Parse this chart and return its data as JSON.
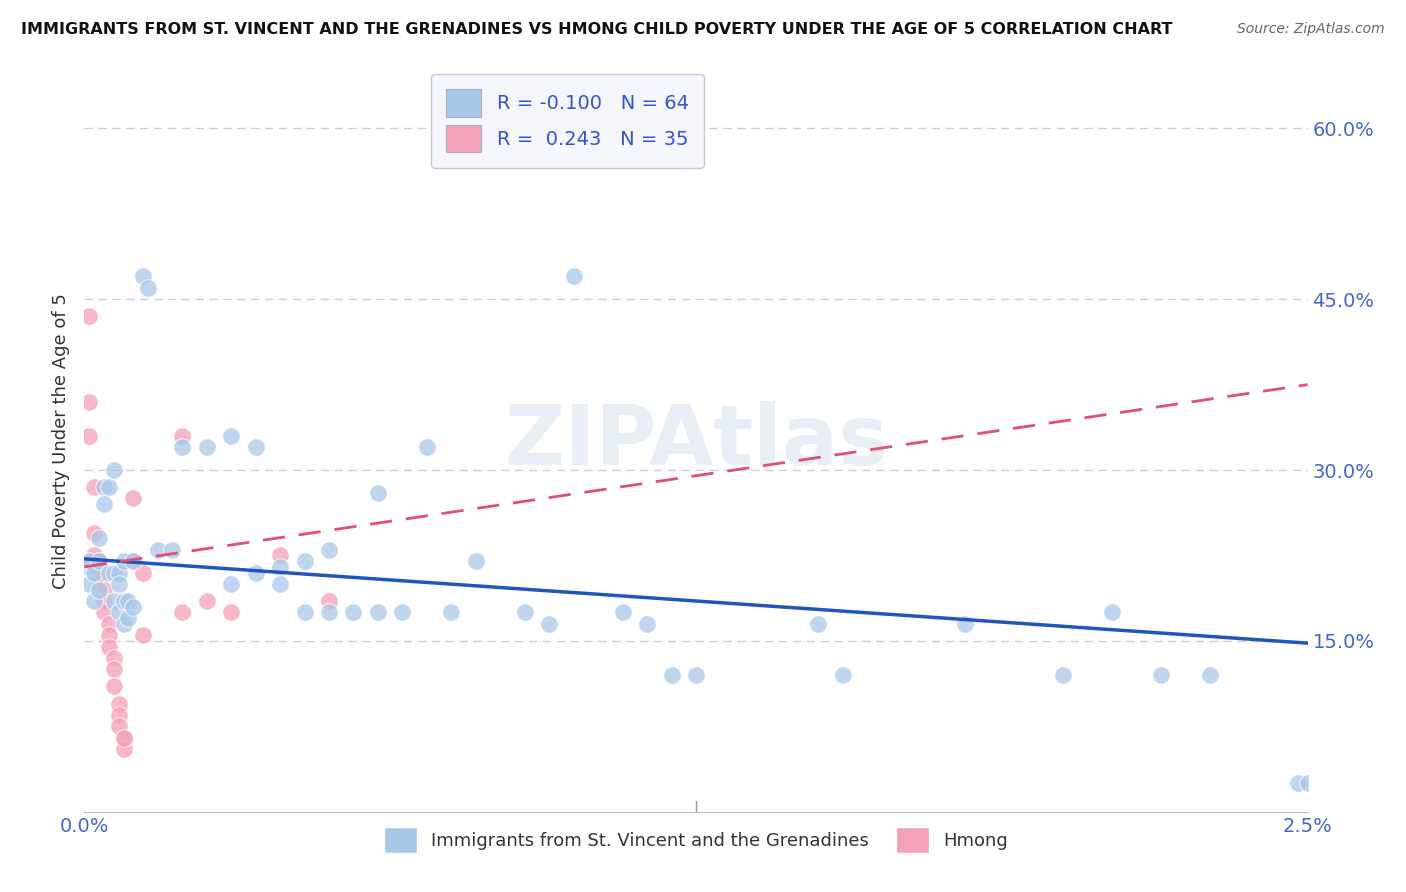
{
  "title": "IMMIGRANTS FROM ST. VINCENT AND THE GRENADINES VS HMONG CHILD POVERTY UNDER THE AGE OF 5 CORRELATION CHART",
  "source": "Source: ZipAtlas.com",
  "ylabel": "Child Poverty Under the Age of 5",
  "blue_R": -0.1,
  "blue_N": 64,
  "pink_R": 0.243,
  "pink_N": 35,
  "blue_color": "#a8c8e8",
  "pink_color": "#f4a0b8",
  "blue_line_color": "#2255bb",
  "pink_line_color": "#e05070",
  "pink_dash_color": "#e8a0b0",
  "x_min": 0.0,
  "x_max": 0.025,
  "y_min": 0.0,
  "y_max": 0.65,
  "y_ticks": [
    0.15,
    0.3,
    0.45,
    0.6
  ],
  "y_tick_labels": [
    "15.0%",
    "30.0%",
    "45.0%",
    "60.0%"
  ],
  "blue_scatter": [
    [
      0.0001,
      0.215
    ],
    [
      0.0001,
      0.22
    ],
    [
      0.0001,
      0.2
    ],
    [
      0.0002,
      0.21
    ],
    [
      0.0002,
      0.185
    ],
    [
      0.0003,
      0.24
    ],
    [
      0.0003,
      0.22
    ],
    [
      0.0003,
      0.195
    ],
    [
      0.0004,
      0.285
    ],
    [
      0.0004,
      0.27
    ],
    [
      0.0005,
      0.285
    ],
    [
      0.0005,
      0.21
    ],
    [
      0.0006,
      0.3
    ],
    [
      0.0006,
      0.21
    ],
    [
      0.0006,
      0.185
    ],
    [
      0.0007,
      0.21
    ],
    [
      0.0007,
      0.2
    ],
    [
      0.0007,
      0.175
    ],
    [
      0.0008,
      0.22
    ],
    [
      0.0008,
      0.185
    ],
    [
      0.0008,
      0.165
    ],
    [
      0.0009,
      0.185
    ],
    [
      0.0009,
      0.17
    ],
    [
      0.001,
      0.22
    ],
    [
      0.001,
      0.18
    ],
    [
      0.0012,
      0.47
    ],
    [
      0.0013,
      0.46
    ],
    [
      0.0015,
      0.23
    ],
    [
      0.0018,
      0.23
    ],
    [
      0.002,
      0.32
    ],
    [
      0.0025,
      0.32
    ],
    [
      0.003,
      0.33
    ],
    [
      0.003,
      0.2
    ],
    [
      0.0035,
      0.32
    ],
    [
      0.0035,
      0.21
    ],
    [
      0.004,
      0.215
    ],
    [
      0.004,
      0.2
    ],
    [
      0.0045,
      0.22
    ],
    [
      0.0045,
      0.175
    ],
    [
      0.005,
      0.23
    ],
    [
      0.005,
      0.175
    ],
    [
      0.0055,
      0.175
    ],
    [
      0.006,
      0.28
    ],
    [
      0.006,
      0.175
    ],
    [
      0.0065,
      0.175
    ],
    [
      0.007,
      0.32
    ],
    [
      0.0075,
      0.175
    ],
    [
      0.008,
      0.22
    ],
    [
      0.009,
      0.175
    ],
    [
      0.0095,
      0.165
    ],
    [
      0.01,
      0.47
    ],
    [
      0.011,
      0.175
    ],
    [
      0.0115,
      0.165
    ],
    [
      0.012,
      0.12
    ],
    [
      0.0125,
      0.12
    ],
    [
      0.015,
      0.165
    ],
    [
      0.0155,
      0.12
    ],
    [
      0.018,
      0.165
    ],
    [
      0.02,
      0.12
    ],
    [
      0.021,
      0.175
    ],
    [
      0.022,
      0.12
    ],
    [
      0.023,
      0.12
    ],
    [
      0.0248,
      0.025
    ],
    [
      0.025,
      0.025
    ]
  ],
  "pink_scatter": [
    [
      0.0001,
      0.435
    ],
    [
      0.0001,
      0.36
    ],
    [
      0.0001,
      0.33
    ],
    [
      0.0002,
      0.285
    ],
    [
      0.0002,
      0.245
    ],
    [
      0.0002,
      0.225
    ],
    [
      0.0003,
      0.22
    ],
    [
      0.0003,
      0.215
    ],
    [
      0.0003,
      0.21
    ],
    [
      0.0003,
      0.2
    ],
    [
      0.0004,
      0.195
    ],
    [
      0.0004,
      0.185
    ],
    [
      0.0004,
      0.175
    ],
    [
      0.0005,
      0.165
    ],
    [
      0.0005,
      0.155
    ],
    [
      0.0005,
      0.145
    ],
    [
      0.0006,
      0.135
    ],
    [
      0.0006,
      0.125
    ],
    [
      0.0006,
      0.11
    ],
    [
      0.0007,
      0.095
    ],
    [
      0.0007,
      0.085
    ],
    [
      0.0007,
      0.075
    ],
    [
      0.0008,
      0.065
    ],
    [
      0.0008,
      0.055
    ],
    [
      0.0008,
      0.065
    ],
    [
      0.001,
      0.275
    ],
    [
      0.001,
      0.22
    ],
    [
      0.0012,
      0.21
    ],
    [
      0.0012,
      0.155
    ],
    [
      0.002,
      0.33
    ],
    [
      0.002,
      0.175
    ],
    [
      0.0025,
      0.185
    ],
    [
      0.003,
      0.175
    ],
    [
      0.004,
      0.225
    ],
    [
      0.005,
      0.185
    ]
  ],
  "background_color": "#ffffff",
  "grid_color": "#ccccdd",
  "watermark_color": "#c5d5e8",
  "watermark_alpha": 0.4
}
